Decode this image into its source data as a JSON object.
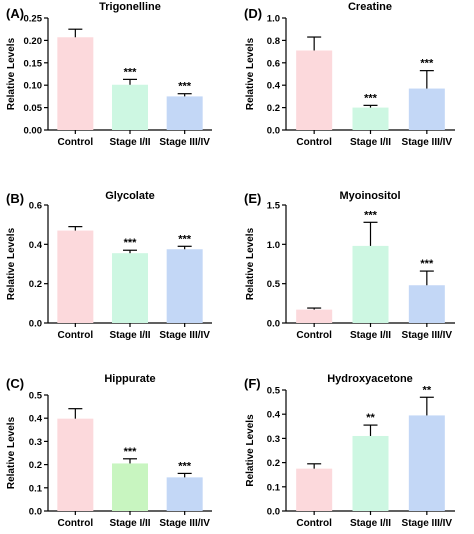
{
  "chart_data": [
    {
      "type": "bar",
      "panel_label": "(A)",
      "title": "Trigonelline",
      "ylabel": "Relative Levels",
      "categories": [
        "Control",
        "Stage I/II",
        "Stage III/IV"
      ],
      "values": [
        0.207,
        0.101,
        0.075
      ],
      "errors": [
        0.018,
        0.012,
        0.006
      ],
      "significance": [
        "",
        "***",
        "***"
      ],
      "ylim": [
        0,
        0.25
      ],
      "yticks": [
        "0.00",
        "0.05",
        "0.10",
        "0.15",
        "0.20",
        "0.25"
      ],
      "colors": [
        "#fcd9dc",
        "#cdf7e2",
        "#c3d7f6"
      ]
    },
    {
      "type": "bar",
      "panel_label": "(D)",
      "title": "Creatine",
      "ylabel": "Relative Levels",
      "categories": [
        "Control",
        "Stage I/II",
        "Stage III/IV"
      ],
      "values": [
        0.71,
        0.2,
        0.37
      ],
      "errors": [
        0.12,
        0.02,
        0.16
      ],
      "significance": [
        "",
        "***",
        "***"
      ],
      "ylim": [
        0,
        1.0
      ],
      "yticks": [
        "0.0",
        "0.2",
        "0.4",
        "0.6",
        "0.8",
        "1.0"
      ],
      "colors": [
        "#fcd9dc",
        "#cdf7e2",
        "#c3d7f6"
      ]
    },
    {
      "type": "bar",
      "panel_label": "(B)",
      "title": "Glycolate",
      "ylabel": "Relative Levels",
      "categories": [
        "Control",
        "Stage I/II",
        "Stage III/IV"
      ],
      "values": [
        0.47,
        0.355,
        0.375
      ],
      "errors": [
        0.02,
        0.015,
        0.015
      ],
      "significance": [
        "",
        "***",
        "***"
      ],
      "ylim": [
        0,
        0.6
      ],
      "yticks": [
        "0.0",
        "0.2",
        "0.4",
        "0.6"
      ],
      "colors": [
        "#fcd9dc",
        "#cdf7e2",
        "#c3d7f6"
      ]
    },
    {
      "type": "bar",
      "panel_label": "(E)",
      "title": "Myoinositol",
      "ylabel": "Relative Levels",
      "categories": [
        "Control",
        "Stage I/II",
        "Stage III/IV"
      ],
      "values": [
        0.17,
        0.98,
        0.48
      ],
      "errors": [
        0.02,
        0.3,
        0.18
      ],
      "significance": [
        "",
        "***",
        "***"
      ],
      "ylim": [
        0,
        1.5
      ],
      "yticks": [
        "0.0",
        "0.5",
        "1.0",
        "1.5"
      ],
      "colors": [
        "#fcd9dc",
        "#cdf7e2",
        "#c3d7f6"
      ]
    },
    {
      "type": "bar",
      "panel_label": "(C)",
      "title": "Hippurate",
      "ylabel": "Relative Levels",
      "categories": [
        "Control",
        "Stage I/II",
        "Stage III/IV"
      ],
      "values": [
        0.398,
        0.205,
        0.145
      ],
      "errors": [
        0.043,
        0.02,
        0.017
      ],
      "significance": [
        "",
        "***",
        "***"
      ],
      "ylim": [
        0,
        0.5
      ],
      "yticks": [
        "0.0",
        "0.1",
        "0.2",
        "0.3",
        "0.4",
        "0.5"
      ],
      "colors": [
        "#fcd9dc",
        "#c8f5c0",
        "#c3d7f6"
      ]
    },
    {
      "type": "bar",
      "panel_label": "(F)",
      "title": "Hydroxyacetone",
      "ylabel": "Relative Levels",
      "categories": [
        "Control",
        "Stage I/II",
        "Stage III/IV"
      ],
      "values": [
        0.175,
        0.31,
        0.395
      ],
      "errors": [
        0.02,
        0.045,
        0.075
      ],
      "significance": [
        "",
        "**",
        "**"
      ],
      "ylim": [
        0,
        0.5
      ],
      "yticks": [
        "0.0",
        "0.1",
        "0.2",
        "0.3",
        "0.4",
        "0.5"
      ],
      "colors": [
        "#fcd9dc",
        "#cdf7e2",
        "#c3d7f6"
      ]
    }
  ]
}
